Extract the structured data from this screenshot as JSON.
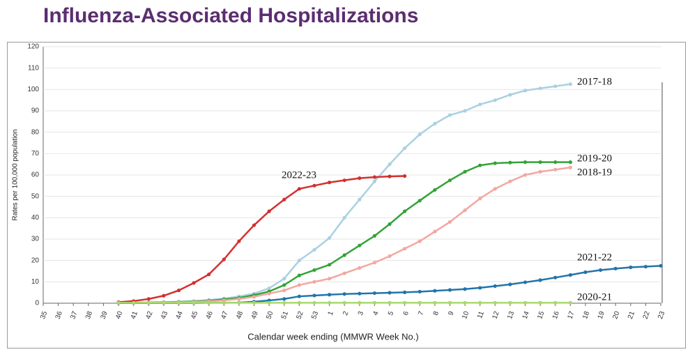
{
  "chart_data": {
    "type": "line",
    "title": "Influenza-Associated Hospitalizations",
    "x_label": "Calendar week ending (MMWR Week No.)",
    "y_label": "Rates per 100,000 population",
    "categories": [
      "35",
      "36",
      "37",
      "38",
      "39",
      "40",
      "41",
      "42",
      "43",
      "44",
      "45",
      "46",
      "47",
      "48",
      "49",
      "50",
      "51",
      "52",
      "53",
      "1",
      "2",
      "3",
      "4",
      "5",
      "6",
      "7",
      "8",
      "9",
      "10",
      "11",
      "12",
      "13",
      "14",
      "15",
      "16",
      "17",
      "18",
      "19",
      "20",
      "21",
      "22",
      "23"
    ],
    "ylim": [
      0,
      120
    ],
    "yticks": [
      0,
      10,
      20,
      30,
      40,
      50,
      60,
      70,
      80,
      90,
      100,
      110,
      120
    ],
    "grid": true,
    "series": [
      {
        "name": "2017-18",
        "color": "#a9d1e2",
        "values": [
          null,
          null,
          null,
          null,
          null,
          0.2,
          0.3,
          0.4,
          0.5,
          0.7,
          1,
          1.5,
          2.2,
          3.2,
          4.5,
          7,
          11.5,
          20,
          25,
          30.5,
          40,
          48.5,
          57,
          65,
          72.5,
          79,
          84,
          88,
          90,
          93,
          95,
          97.5,
          99.5,
          100.5,
          101.5,
          102.5,
          null,
          null,
          null,
          null,
          null,
          null
        ]
      },
      {
        "name": "2019-20",
        "color": "#33a336",
        "values": [
          null,
          null,
          null,
          null,
          null,
          0.1,
          0.2,
          0.3,
          0.4,
          0.6,
          0.8,
          1.2,
          1.8,
          2.5,
          3.8,
          5.5,
          8.5,
          13,
          15.5,
          18,
          22.5,
          27,
          31.5,
          37,
          43,
          48,
          53,
          57.5,
          61.5,
          64.5,
          65.5,
          65.8,
          66,
          66,
          66,
          66,
          null,
          null,
          null,
          null,
          null,
          null
        ]
      },
      {
        "name": "2018-19",
        "color": "#f3a7a1",
        "values": [
          null,
          null,
          null,
          null,
          null,
          0.1,
          0.1,
          0.2,
          0.3,
          0.4,
          0.6,
          0.9,
          1.3,
          2,
          3,
          4.5,
          6,
          8.5,
          10,
          11.5,
          14,
          16.5,
          19,
          22,
          25.5,
          29,
          33.5,
          38,
          43.5,
          49,
          53.5,
          57,
          60,
          61.5,
          62.5,
          63.5,
          null,
          null,
          null,
          null,
          null,
          null
        ]
      },
      {
        "name": "2022-23",
        "color": "#d3302f",
        "values": [
          null,
          null,
          null,
          null,
          null,
          0.5,
          1,
          2,
          3.5,
          6,
          9.5,
          13.5,
          20.5,
          29,
          36.5,
          43,
          48.5,
          53.5,
          55,
          56.5,
          57.5,
          58.5,
          59,
          59.3,
          59.5,
          null,
          null,
          null,
          null,
          null,
          null,
          null,
          null,
          null,
          null,
          null,
          null,
          null,
          null,
          null,
          null,
          null
        ]
      },
      {
        "name": "2021-22",
        "color": "#2274aa",
        "values": [
          null,
          null,
          null,
          null,
          null,
          0.1,
          0.1,
          0.1,
          0.1,
          0.1,
          0.1,
          0.2,
          0.2,
          0.3,
          0.7,
          1.3,
          2,
          3.2,
          3.6,
          4,
          4.3,
          4.5,
          4.7,
          4.9,
          5.1,
          5.4,
          5.8,
          6.2,
          6.6,
          7.2,
          8,
          8.8,
          9.8,
          10.8,
          12,
          13.2,
          14.5,
          15.5,
          16.2,
          16.8,
          17.1,
          17.5
        ]
      },
      {
        "name": "2020-21",
        "color": "#a8d96d",
        "values": [
          null,
          null,
          null,
          null,
          null,
          0.2,
          0.2,
          0.2,
          0.2,
          0.2,
          0.2,
          0.2,
          0.2,
          0.2,
          0.2,
          0.2,
          0.2,
          0.2,
          0.2,
          0.2,
          0.2,
          0.2,
          0.2,
          0.2,
          0.2,
          0.2,
          0.2,
          0.2,
          0.2,
          0.2,
          0.2,
          0.2,
          0.2,
          0.2,
          0.2,
          0.2,
          null,
          null,
          null,
          null,
          null,
          null
        ]
      }
    ]
  }
}
